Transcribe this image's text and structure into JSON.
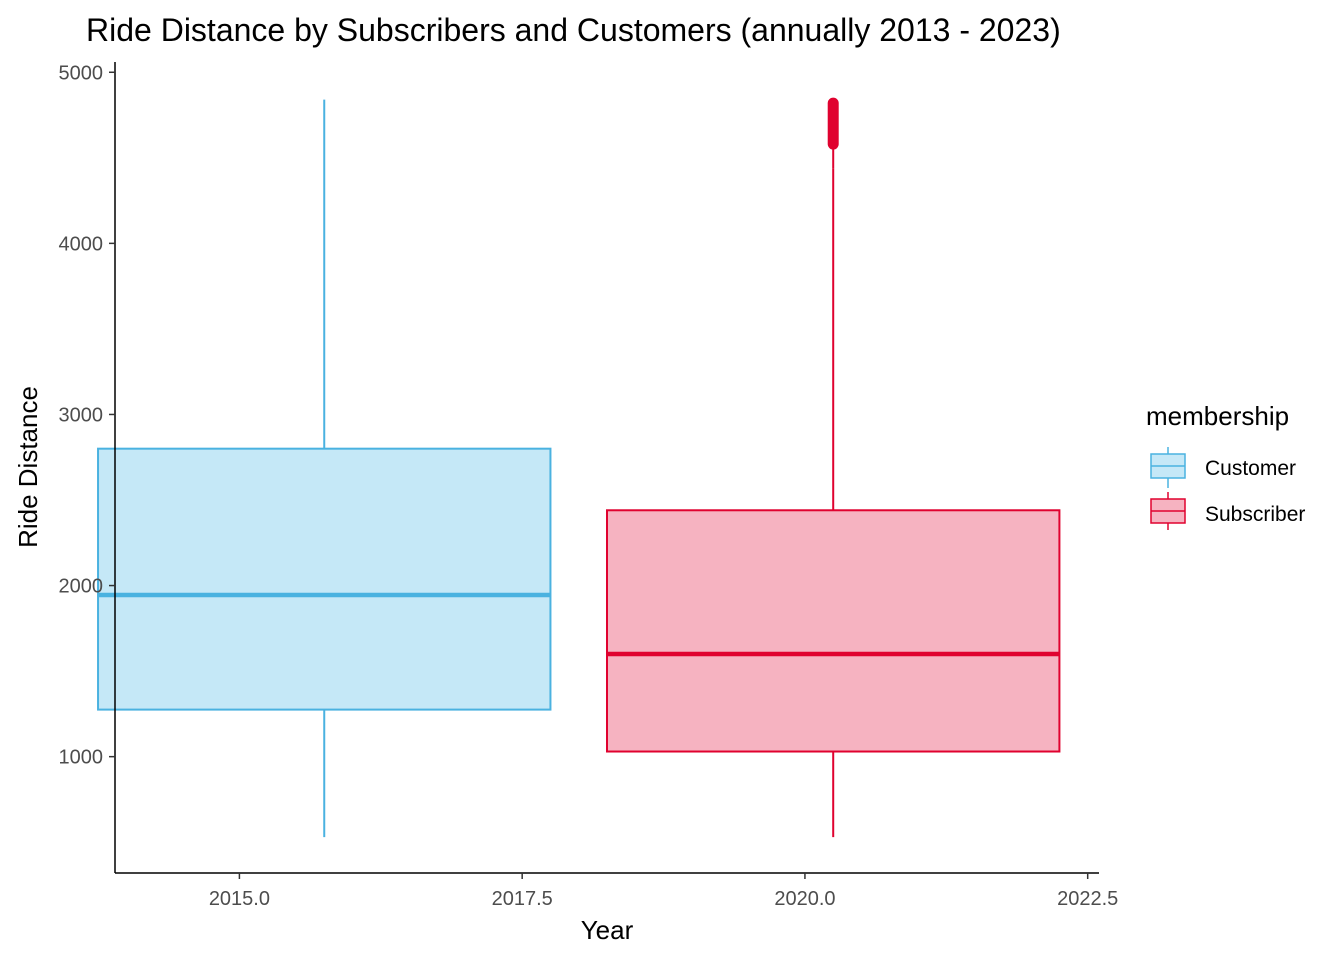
{
  "chart_data": {
    "type": "boxplot",
    "title": "Ride Distance by Subscribers and Customers (annually 2013 - 2023)",
    "xlabel": "Year",
    "ylabel": "Ride Distance",
    "xlim": [
      2013.9,
      2022.6
    ],
    "ylim": [
      320,
      5060
    ],
    "x_ticks": [
      2015.0,
      2017.5,
      2020.0,
      2022.5
    ],
    "x_tick_labels": [
      "2015.0",
      "2017.5",
      "2020.0",
      "2022.5"
    ],
    "y_ticks": [
      1000,
      2000,
      3000,
      4000,
      5000
    ],
    "y_tick_labels": [
      "1000",
      "2000",
      "3000",
      "4000",
      "5000"
    ],
    "grid": false,
    "legend": {
      "title": "membership",
      "placement": "right",
      "entries": [
        "Customer",
        "Subscriber"
      ]
    },
    "series": [
      {
        "name": "Customer",
        "x_center": 2015.75,
        "box_width": 4.0,
        "whisker_low": 530,
        "q1": 1275,
        "median": 1945,
        "q3": 2800,
        "whisker_high": 4840,
        "outliers_range": null,
        "stroke": "#4ab2e0",
        "fill": "#c5e8f7"
      },
      {
        "name": "Subscriber",
        "x_center": 2020.25,
        "box_width": 4.0,
        "whisker_low": 530,
        "q1": 1030,
        "median": 1600,
        "q3": 2440,
        "whisker_high": 4440,
        "outliers_range": [
          4560,
          4840
        ],
        "stroke": "#e0022f",
        "fill": "#f6b3c1"
      }
    ]
  }
}
